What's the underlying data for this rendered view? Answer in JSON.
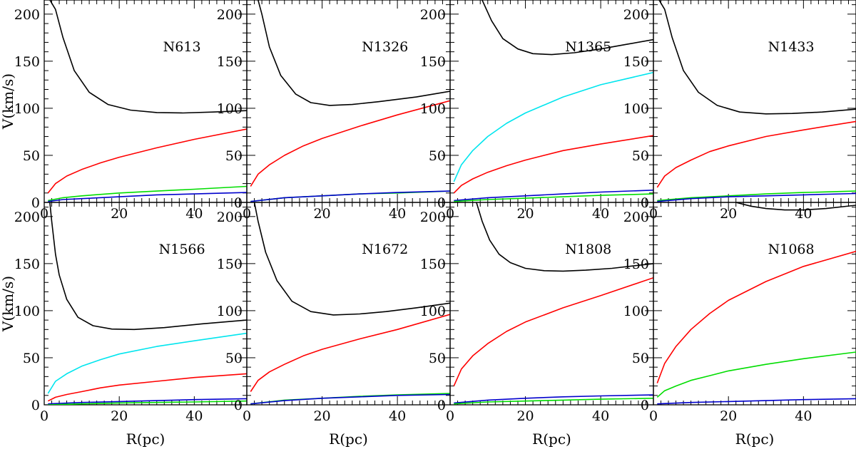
{
  "chart_data": {
    "type": "line",
    "layout": "2 rows x 4 columns small multiples with shared axes",
    "xlabel": "R(pc)",
    "ylabel": "V(km/s)",
    "xlim": [
      0,
      54
    ],
    "ylim": [
      0,
      215
    ],
    "x_ticks": [
      0,
      20,
      40
    ],
    "y_ticks": [
      0,
      50,
      100,
      150,
      200
    ],
    "x_tick_labels": [
      "0",
      "20",
      "40"
    ],
    "y_tick_labels": [
      "0",
      "50",
      "100",
      "150",
      "200"
    ],
    "series_colors": {
      "black": "#000000",
      "red": "#ff0000",
      "cyan": "#00e5ee",
      "green": "#00dd00",
      "blue": "#0000cc"
    },
    "panels": [
      {
        "label": "N613",
        "series": [
          {
            "name": "black",
            "x": [
              1.5,
              3,
              5,
              8,
              12,
              17,
              23,
              30,
              37,
              45,
              54
            ],
            "values": [
              215,
              205,
              175,
              140,
              117,
              104,
              98,
              95.5,
              95,
              96,
              97.5
            ]
          },
          {
            "name": "red",
            "x": [
              1,
              3,
              6,
              10,
              15,
              20,
              30,
              40,
              54
            ],
            "values": [
              10,
              20,
              28,
              35,
              42,
              48,
              58,
              67,
              78
            ]
          },
          {
            "name": "green",
            "x": [
              1,
              5,
              10,
              20,
              30,
              40,
              54
            ],
            "values": [
              2,
              5,
              7,
              10,
              12,
              14,
              17
            ]
          },
          {
            "name": "blue",
            "x": [
              1,
              5,
              10,
              20,
              30,
              40,
              54
            ],
            "values": [
              1,
              3,
              4,
              6,
              8,
              9,
              10.5
            ]
          }
        ]
      },
      {
        "label": "N1326",
        "series": [
          {
            "name": "black",
            "x": [
              3,
              4,
              6,
              9,
              13,
              17,
              22,
              28,
              35,
              45,
              54
            ],
            "values": [
              215,
              200,
              165,
              135,
              115,
              106,
              103,
              104,
              107,
              112,
              118
            ]
          },
          {
            "name": "red",
            "x": [
              1,
              3,
              6,
              10,
              15,
              20,
              30,
              40,
              54
            ],
            "values": [
              17,
              30,
              40,
              50,
              60,
              68,
              81,
              93,
              108
            ]
          },
          {
            "name": "green",
            "x": [
              1,
              10,
              20,
              30,
              40,
              54
            ],
            "values": [
              1,
              5,
              7,
              9,
              10,
              12
            ]
          },
          {
            "name": "blue",
            "x": [
              1,
              10,
              20,
              30,
              40,
              54
            ],
            "values": [
              1,
              5,
              7,
              9,
              10.5,
              12
            ]
          }
        ]
      },
      {
        "label": "N1365",
        "series": [
          {
            "name": "black",
            "x": [
              8.5,
              11,
              14,
              18,
              22,
              27,
              33,
              40,
              47,
              54
            ],
            "values": [
              215,
              193,
              174,
              163,
              158,
              157,
              159,
              163,
              168,
              173
            ]
          },
          {
            "name": "cyan",
            "x": [
              1,
              3,
              6,
              10,
              15,
              20,
              30,
              40,
              54
            ],
            "values": [
              22,
              40,
              55,
              70,
              84,
              95,
              112,
              125,
              138
            ]
          },
          {
            "name": "red",
            "x": [
              1,
              3,
              6,
              10,
              15,
              20,
              30,
              40,
              54
            ],
            "values": [
              10,
              18,
              25,
              32,
              39,
              45,
              55,
              62,
              71
            ]
          },
          {
            "name": "blue",
            "x": [
              1,
              10,
              20,
              30,
              40,
              54
            ],
            "values": [
              2,
              5,
              7,
              9,
              11,
              13
            ]
          },
          {
            "name": "green",
            "x": [
              1,
              10,
              20,
              30,
              40,
              54
            ],
            "values": [
              1,
              3,
              4.5,
              6,
              7.5,
              9
            ]
          }
        ]
      },
      {
        "label": "N1433",
        "series": [
          {
            "name": "black",
            "x": [
              1.5,
              3,
              5,
              8,
              12,
              17,
              23,
              30,
              37,
              45,
              54
            ],
            "values": [
              215,
              205,
              175,
              140,
              117,
              103,
              96,
              94,
              94.5,
              96,
              99
            ]
          },
          {
            "name": "red",
            "x": [
              1,
              3,
              6,
              10,
              15,
              20,
              30,
              40,
              54
            ],
            "values": [
              16,
              28,
              37,
              45,
              54,
              60,
              70,
              77,
              86
            ]
          },
          {
            "name": "green",
            "x": [
              1,
              10,
              20,
              30,
              40,
              54
            ],
            "values": [
              2,
              5,
              7,
              9,
              10.5,
              12
            ]
          },
          {
            "name": "blue",
            "x": [
              1,
              10,
              20,
              30,
              40,
              54
            ],
            "values": [
              1,
              4,
              6,
              7,
              8,
              9.5
            ]
          }
        ]
      },
      {
        "label": "N1566",
        "series": [
          {
            "name": "black",
            "x": [
              1.5,
              2,
              3,
              4,
              6,
              9,
              13,
              18,
              24,
              32,
              42,
              54
            ],
            "values": [
              215,
              195,
              160,
              138,
              112,
              93,
              84,
              80.5,
              80,
              82,
              86,
              90
            ]
          },
          {
            "name": "cyan",
            "x": [
              1,
              3,
              6,
              10,
              15,
              20,
              30,
              40,
              54
            ],
            "values": [
              12,
              25,
              33,
              41,
              48,
              54,
              62,
              68,
              76
            ]
          },
          {
            "name": "red",
            "x": [
              1,
              3,
              6,
              10,
              15,
              20,
              30,
              40,
              54
            ],
            "values": [
              4,
              8,
              11,
              14,
              18,
              21,
              25,
              29,
              33
            ]
          },
          {
            "name": "blue",
            "x": [
              1,
              10,
              20,
              30,
              40,
              54
            ],
            "values": [
              1,
              2.5,
              3.5,
              4.5,
              5.5,
              6.5
            ]
          },
          {
            "name": "green",
            "x": [
              1,
              10,
              20,
              30,
              40,
              54
            ],
            "values": [
              0,
              1,
              2,
              2.5,
              3,
              4
            ]
          }
        ]
      },
      {
        "label": "N1672",
        "series": [
          {
            "name": "black",
            "x": [
              2,
              3,
              5,
              8,
              12,
              17,
              23,
              30,
              37,
              45,
              54
            ],
            "values": [
              215,
              195,
              162,
              132,
              110,
              99,
              95.5,
              96.5,
              99,
              103,
              108
            ]
          },
          {
            "name": "red",
            "x": [
              1,
              3,
              6,
              10,
              15,
              20,
              30,
              40,
              54
            ],
            "values": [
              14,
              26,
              35,
              43,
              52,
              59,
              70,
              80,
              96
            ]
          },
          {
            "name": "green",
            "x": [
              1,
              10,
              20,
              30,
              40,
              54
            ],
            "values": [
              1,
              5,
              7,
              9,
              10.5,
              12
            ]
          },
          {
            "name": "blue",
            "x": [
              1,
              10,
              20,
              30,
              40,
              54
            ],
            "values": [
              1,
              4.5,
              7,
              8.5,
              10,
              11
            ]
          }
        ]
      },
      {
        "label": "N1808",
        "series": [
          {
            "name": "black",
            "x": [
              7,
              8.5,
              10.5,
              13,
              16,
              20,
              25,
              30,
              36,
              43,
              54
            ],
            "values": [
              215,
              195,
              175,
              160,
              151,
              145,
              142.5,
              142,
              143,
              145,
              150
            ]
          },
          {
            "name": "red",
            "x": [
              1,
              3,
              6,
              10,
              15,
              20,
              30,
              40,
              54
            ],
            "values": [
              20,
              38,
              52,
              65,
              78,
              88,
              103,
              116,
              135
            ]
          },
          {
            "name": "blue",
            "x": [
              1,
              10,
              20,
              30,
              40,
              54
            ],
            "values": [
              2,
              5,
              7,
              8.5,
              9.5,
              10.5
            ]
          },
          {
            "name": "green",
            "x": [
              1,
              10,
              20,
              30,
              40,
              54
            ],
            "values": [
              1,
              3,
              4,
              5,
              6,
              7
            ]
          }
        ]
      },
      {
        "label": "N1068",
        "series": [
          {
            "name": "black",
            "x": [
              22,
              26,
              30,
              35,
              40,
              46,
              54
            ],
            "values": [
              215,
              211,
              208.5,
              207,
              207,
              208.5,
              212
            ]
          },
          {
            "name": "red",
            "x": [
              1,
              3,
              6,
              10,
              15,
              20,
              30,
              40,
              54
            ],
            "values": [
              23,
              44,
              62,
              80,
              97,
              111,
              131,
              147,
              163
            ]
          },
          {
            "name": "green",
            "x": [
              1,
              3,
              6,
              10,
              15,
              20,
              30,
              40,
              54
            ],
            "values": [
              8,
              15,
              20,
              26,
              31,
              36,
              43,
              49,
              56
            ]
          },
          {
            "name": "blue",
            "x": [
              1,
              10,
              20,
              30,
              40,
              54
            ],
            "values": [
              1,
              2.5,
              3.5,
              4.5,
              5.5,
              6.5
            ]
          }
        ]
      }
    ]
  }
}
